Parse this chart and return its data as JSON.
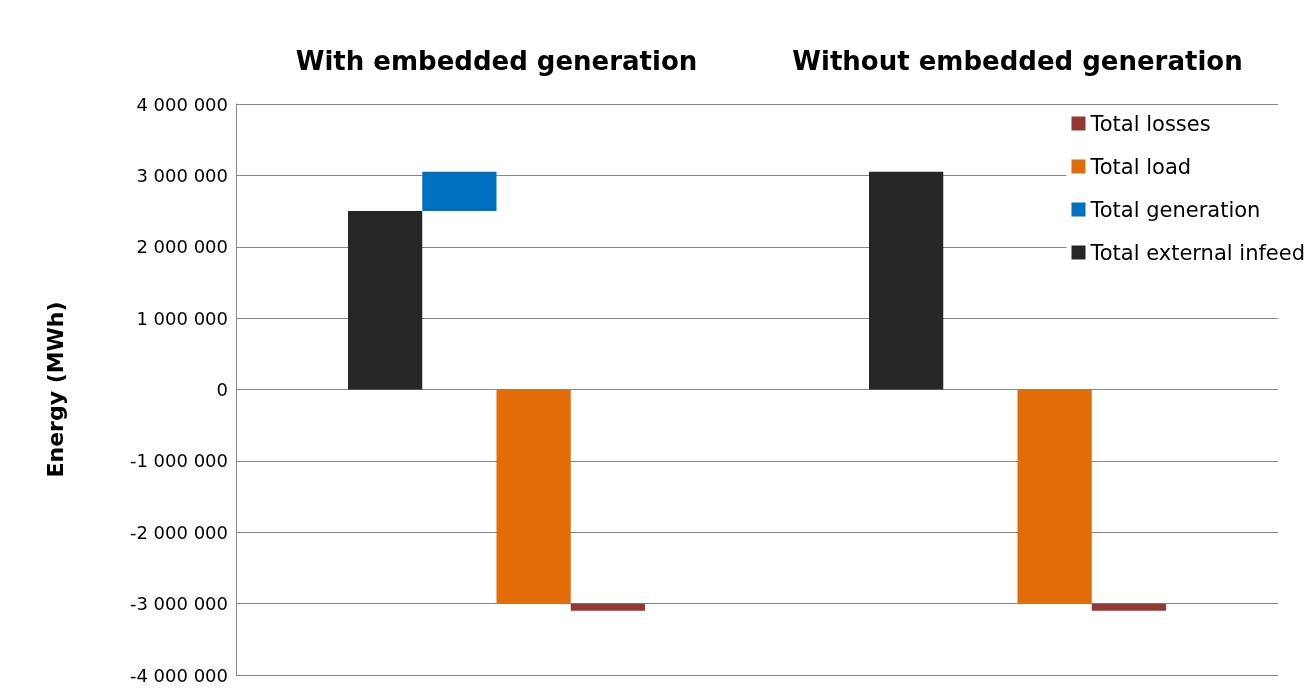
{
  "chart_data": {
    "type": "bar",
    "categories": [
      "With embedded generation",
      "Without embedded generation"
    ],
    "ylabel": "Energy (MWh)",
    "series": [
      {
        "name": "Total external infeed",
        "color": "#262626",
        "values": [
          2500000,
          3050000
        ],
        "base": [
          0,
          0
        ]
      },
      {
        "name": "Total generation",
        "color": "#0070c0",
        "values": [
          550000,
          null
        ],
        "base": [
          2500000,
          null
        ]
      },
      {
        "name": "Total load",
        "color": "#e36c09",
        "values": [
          -3000000,
          -3000000
        ],
        "base": [
          0,
          0
        ]
      },
      {
        "name": "Total losses",
        "color": "#953735",
        "values": [
          -100000,
          -100000
        ],
        "base": [
          -3000000,
          -3000000
        ]
      }
    ],
    "ylim": [
      -4000000,
      4000000
    ],
    "yticks": [
      {
        "value": -4000000,
        "label": "-4 000 000"
      },
      {
        "value": -3000000,
        "label": "-3 000 000"
      },
      {
        "value": -2000000,
        "label": "-2 000 000"
      },
      {
        "value": -1000000,
        "label": "-1 000 000"
      },
      0,
      {
        "value": 1000000,
        "label": "1 000 000"
      },
      {
        "value": 2000000,
        "label": "2 000 000"
      },
      {
        "value": 3000000,
        "label": "3 000 000"
      },
      {
        "value": 4000000,
        "label": "4 000 000"
      }
    ],
    "grid": "y",
    "legend": "right"
  }
}
